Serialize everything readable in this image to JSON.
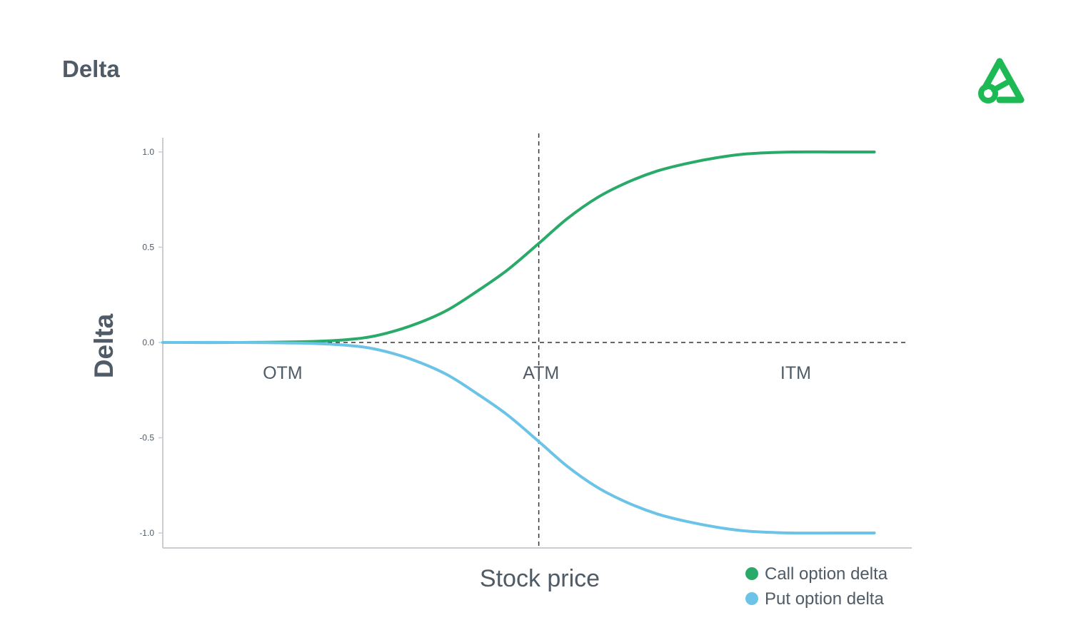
{
  "page": {
    "title": "Delta"
  },
  "logo": {
    "icon": "brand-logo-icon",
    "color": "#1db954"
  },
  "chart_data": {
    "type": "line",
    "title": "",
    "xlabel": "Stock price",
    "ylabel": "Delta",
    "ylim": [
      -1.0,
      1.0
    ],
    "yticks": [
      1.0,
      0.5,
      0.0,
      -0.5,
      -1.0
    ],
    "ytick_labels": [
      "1.0",
      "0.5",
      "0.0",
      "-0.5",
      "-1.0"
    ],
    "xlim": [
      0,
      100
    ],
    "reference_lines": [
      {
        "orientation": "horizontal",
        "value": 0.0,
        "style": "dashed"
      },
      {
        "orientation": "vertical",
        "value": 50.2,
        "style": "dashed"
      }
    ],
    "region_labels": [
      {
        "text": "OTM",
        "x": 16
      },
      {
        "text": "ATM",
        "x": 50.5
      },
      {
        "text": "ITM",
        "x": 84.5
      }
    ],
    "grid": false,
    "legend": {
      "placement": "bottom-right"
    },
    "series": [
      {
        "name": "Call option delta",
        "color": "#2aaa68",
        "x": [
          0,
          10,
          20,
          26,
          30,
          34,
          38,
          42,
          46,
          50.2,
          54,
          58,
          62,
          66,
          70,
          74,
          78,
          84,
          90,
          95
        ],
        "y": [
          0.0,
          0.0,
          0.005,
          0.02,
          0.05,
          0.1,
          0.17,
          0.27,
          0.38,
          0.52,
          0.65,
          0.76,
          0.84,
          0.9,
          0.94,
          0.97,
          0.99,
          1.0,
          1.0,
          1.0
        ]
      },
      {
        "name": "Put option delta",
        "color": "#6cc3e8",
        "x": [
          0,
          10,
          20,
          26,
          30,
          34,
          38,
          42,
          46,
          50.2,
          54,
          58,
          62,
          66,
          70,
          74,
          78,
          84,
          90,
          95
        ],
        "y": [
          0.0,
          0.0,
          -0.005,
          -0.02,
          -0.05,
          -0.1,
          -0.17,
          -0.27,
          -0.38,
          -0.52,
          -0.65,
          -0.76,
          -0.84,
          -0.9,
          -0.94,
          -0.97,
          -0.99,
          -1.0,
          -1.0,
          -1.0
        ]
      }
    ]
  }
}
